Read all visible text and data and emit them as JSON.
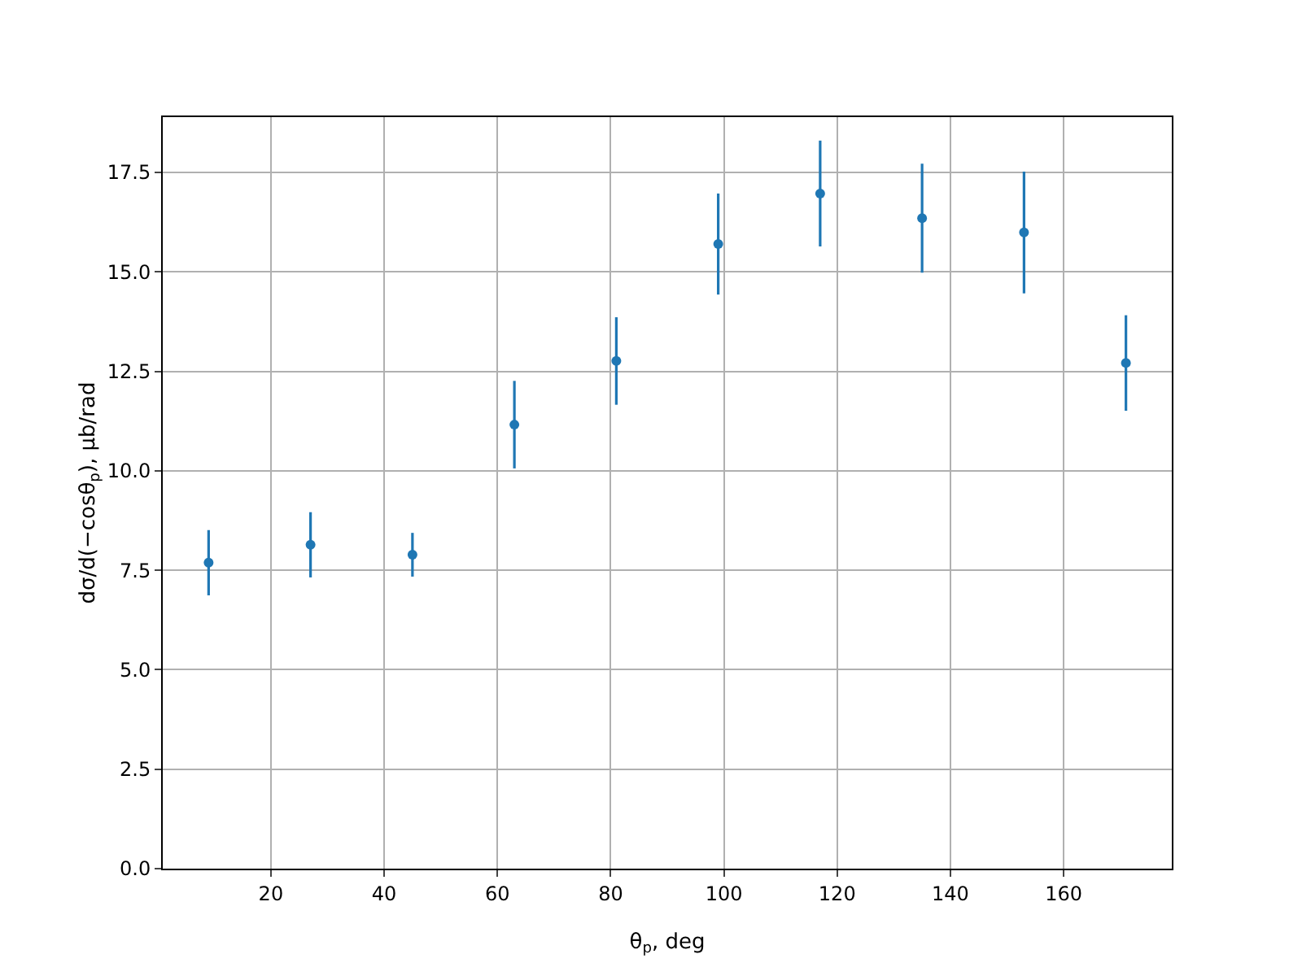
{
  "chart_data": {
    "type": "scatter",
    "xlabel": "θ$_{p}$, deg",
    "ylabel": "dσ/d(−cosθ$_{p}$), μb/rad",
    "x": [
      9,
      27,
      45,
      63,
      81,
      99,
      117,
      135,
      153,
      171
    ],
    "series": [
      {
        "color": "#1f77b4",
        "values": [
          7.69,
          8.14,
          7.89,
          11.16,
          12.76,
          15.7,
          16.97,
          16.35,
          15.99,
          12.71
        ],
        "errors": [
          0.82,
          0.82,
          0.55,
          1.1,
          1.1,
          1.27,
          1.33,
          1.37,
          1.53,
          1.2
        ]
      }
    ],
    "xlim": [
      0.9,
      179.1
    ],
    "xticks": [
      20,
      40,
      60,
      80,
      100,
      120,
      140,
      160
    ],
    "ylim": [
      0,
      18.89
    ],
    "yticks": [
      {
        "value": 0,
        "label": "0.0"
      },
      {
        "value": 2.5,
        "label": "2.5"
      },
      {
        "value": 5,
        "label": "5.0"
      },
      {
        "value": 7.5,
        "label": "7.5"
      },
      {
        "value": 10,
        "label": "10.0"
      },
      {
        "value": 12.5,
        "label": "12.5"
      },
      {
        "value": 15,
        "label": "15.0"
      },
      {
        "value": 17.5,
        "label": "17.5"
      }
    ],
    "grid": true,
    "marker": "circle"
  }
}
